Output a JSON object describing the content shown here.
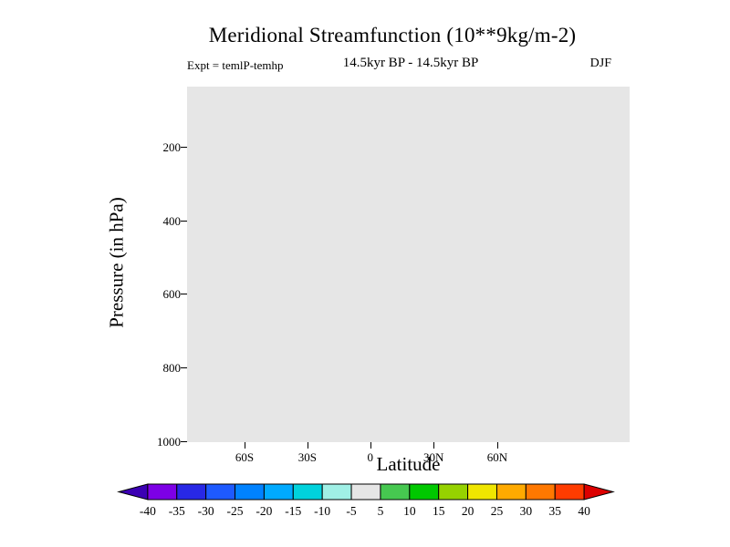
{
  "title": "Meridional Streamfunction (10**9kg/m-2)",
  "header": {
    "experiment": "Expt = temlP-temhp",
    "period": "14.5kyr BP - 14.5kyr BP",
    "season": "DJF"
  },
  "axes": {
    "x_label": "Latitude",
    "y_label": "Pressure (in hPa)",
    "x_tick_labels": [
      "60S",
      "30S",
      "0",
      "30N",
      "60N"
    ],
    "y_tick_labels": [
      "200",
      "400",
      "600",
      "800",
      "1000"
    ]
  },
  "colorbar": {
    "tick_labels": [
      "-40",
      "-35",
      "-30",
      "-25",
      "-20",
      "-15",
      "-10",
      "-5",
      "5",
      "10",
      "15",
      "20",
      "25",
      "30",
      "35",
      "40"
    ],
    "colors": [
      "#3c00b4",
      "#7d00e6",
      "#2828e6",
      "#1e5aff",
      "#0082ff",
      "#00aaff",
      "#00d2dc",
      "#a0f0e6",
      "#e6e6e6",
      "#46c850",
      "#00c800",
      "#96d200",
      "#f0e600",
      "#ffaa00",
      "#ff7800",
      "#ff3c00",
      "#dc0000"
    ],
    "outline_color": "#000000"
  },
  "chart_data": {
    "type": "heatmap",
    "title": "Meridional Streamfunction (10**9kg/m-2)",
    "units": "10**9 kg/m-2",
    "experiment": "Expt = temlP-temhp",
    "subtitle": "14.5kyr BP - 14.5kyr BP",
    "season": "DJF",
    "xlabel": "Latitude",
    "ylabel": "Pressure (in hPa)",
    "x_tick_labels": [
      "60S",
      "30S",
      "0",
      "30N",
      "60N"
    ],
    "y_tick_labels": [
      200,
      400,
      600,
      800,
      1000
    ],
    "y_axis_direction": "pressure increases downward; bottom of plot = 1000 hPa",
    "contour_levels": [
      -40,
      -35,
      -30,
      -25,
      -20,
      -15,
      -10,
      -5,
      5,
      10,
      15,
      20,
      25,
      30,
      35,
      40
    ],
    "palette": [
      "#3c00b4",
      "#7d00e6",
      "#2828e6",
      "#1e5aff",
      "#0082ff",
      "#00aaff",
      "#00d2dc",
      "#a0f0e6",
      "#e6e6e6",
      "#46c850",
      "#00c800",
      "#96d200",
      "#f0e600",
      "#ffaa00",
      "#ff7800",
      "#ff3c00",
      "#dc0000"
    ],
    "field_summary": "Difference field (temlP-temhp, 14.5kyr BP - 14.5kyr BP, DJF) is uniformly within the -5..5 level: the whole plot area is filled with the neutral light-gray color, no contours or shading features visible",
    "plot_fill_color": "#e6e6e6",
    "legend_position": "horizontal colorbar below plot"
  }
}
